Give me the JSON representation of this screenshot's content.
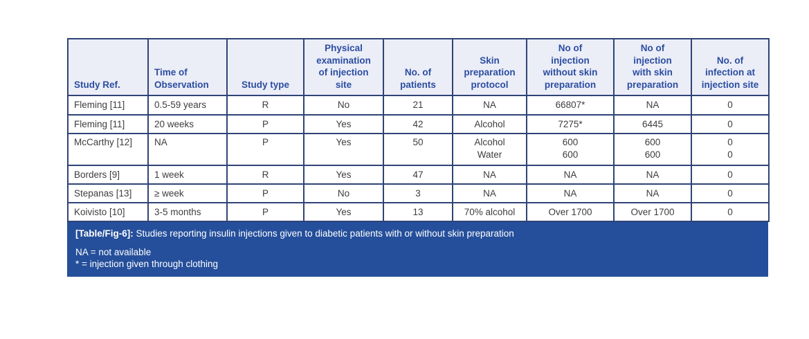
{
  "colors": {
    "header_bg": "#ebedf7",
    "header_text": "#2b4da0",
    "border": "#2f4377",
    "body_text": "#3d3d3d",
    "caption_bg": "#254f9b",
    "caption_text": "#ffffff"
  },
  "table": {
    "columns": [
      "Study Ref.",
      "Time of\nObservation",
      "Study type",
      "Physical\nexamination\nof injection\nsite",
      "No. of\npatients",
      "Skin\npreparation\nprotocol",
      "No of\ninjection\nwithout skin\npreparation",
      "No of\ninjection\nwith skin\npreparation",
      "No. of\ninfection at\ninjection site"
    ],
    "rows": [
      [
        "Fleming [11]",
        "0.5-59 years",
        "R",
        "No",
        "21",
        "NA",
        "66807*",
        "NA",
        "0"
      ],
      [
        "Fleming [11]",
        "20 weeks",
        "P",
        "Yes",
        "42",
        "Alcohol",
        "7275*",
        "6445",
        "0"
      ],
      [
        "McCarthy [12]",
        "NA",
        "P",
        "Yes",
        "50",
        "Alcohol\nWater",
        "600\n600",
        "600\n600",
        "0\n0"
      ],
      [
        "Borders [9]",
        "1 week",
        "R",
        "Yes",
        "47",
        "NA",
        "NA",
        "NA",
        "0"
      ],
      [
        "Stepanas [13]",
        "≥ week",
        "P",
        "No",
        "3",
        "NA",
        "NA",
        "NA",
        "0"
      ],
      [
        "Koivisto [10]",
        "3-5 months",
        "P",
        "Yes",
        "13",
        "70% alcohol",
        "Over 1700",
        "Over 1700",
        "0"
      ]
    ]
  },
  "caption": {
    "label": "[Table/Fig-6]:",
    "text": " Studies reporting insulin injections given to diabetic patients with or without skin preparation",
    "notes": [
      "NA = not available",
      "* = injection given through clothing"
    ]
  }
}
